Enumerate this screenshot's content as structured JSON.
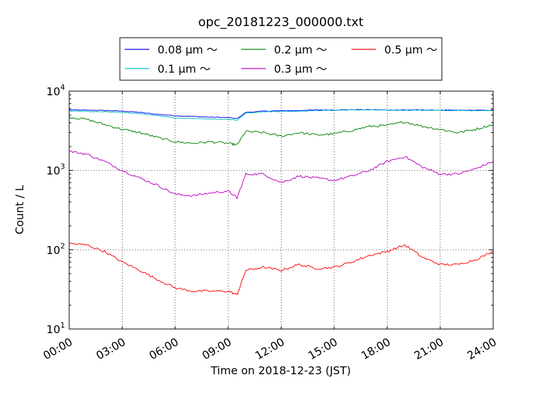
{
  "chart_data": {
    "type": "line",
    "title": "opc_20181223_000000.txt",
    "xlabel": "Time on 2018-12-23 (JST)",
    "ylabel": "Count / L",
    "x_unit": "hours",
    "xlim": [
      0,
      24
    ],
    "ylim": [
      10,
      10000
    ],
    "yscale": "log",
    "grid": true,
    "legend_position": "top-outside",
    "x_ticks": [
      {
        "value": 0,
        "label": "00:00"
      },
      {
        "value": 3,
        "label": "03:00"
      },
      {
        "value": 6,
        "label": "06:00"
      },
      {
        "value": 9,
        "label": "09:00"
      },
      {
        "value": 12,
        "label": "12:00"
      },
      {
        "value": 15,
        "label": "15:00"
      },
      {
        "value": 18,
        "label": "18:00"
      },
      {
        "value": 21,
        "label": "21:00"
      },
      {
        "value": 24,
        "label": "24:00"
      }
    ],
    "y_ticks": [
      {
        "value": 10,
        "mantissa": "10",
        "exponent": "1"
      },
      {
        "value": 100,
        "mantissa": "10",
        "exponent": "2"
      },
      {
        "value": 1000,
        "mantissa": "10",
        "exponent": "3"
      },
      {
        "value": 10000,
        "mantissa": "10",
        "exponent": "4"
      }
    ],
    "x": [
      0,
      1,
      2,
      3,
      4,
      5,
      6,
      7,
      8,
      9,
      9.5,
      10,
      11,
      12,
      13,
      14,
      15,
      16,
      17,
      18,
      19,
      20,
      21,
      22,
      23,
      24
    ],
    "series": [
      {
        "name": "0.08 μm ～",
        "color": "#0000ff",
        "values": [
          5800,
          5750,
          5700,
          5600,
          5400,
          5100,
          4900,
          4800,
          4700,
          4650,
          4500,
          5400,
          5600,
          5650,
          5700,
          5800,
          5800,
          5850,
          5850,
          5800,
          5800,
          5800,
          5750,
          5750,
          5750,
          5750
        ]
      },
      {
        "name": "0.1 μm ～",
        "color": "#00bfbf",
        "values": [
          5600,
          5550,
          5500,
          5400,
          5200,
          4900,
          4600,
          4500,
          4450,
          4400,
          4300,
          5300,
          5500,
          5550,
          5600,
          5700,
          5750,
          5800,
          5800,
          5750,
          5750,
          5750,
          5700,
          5700,
          5700,
          5700
        ]
      },
      {
        "name": "0.2 μm ～",
        "color": "#008000",
        "values": [
          4700,
          4400,
          3800,
          3300,
          3000,
          2600,
          2300,
          2200,
          2300,
          2200,
          2100,
          3100,
          3000,
          2700,
          3000,
          2800,
          2900,
          3200,
          3600,
          3700,
          4100,
          3600,
          3300,
          3000,
          3300,
          3800
        ]
      },
      {
        "name": "0.3 μm ～",
        "color": "#bf00bf",
        "values": [
          1750,
          1600,
          1300,
          1000,
          800,
          650,
          500,
          480,
          520,
          550,
          450,
          900,
          900,
          700,
          850,
          800,
          750,
          850,
          1000,
          1300,
          1500,
          1100,
          900,
          900,
          1050,
          1300
        ]
      },
      {
        "name": "0.5 μm ～",
        "color": "#ff0000",
        "values": [
          120,
          115,
          95,
          70,
          55,
          42,
          33,
          30,
          30,
          30,
          27,
          55,
          60,
          55,
          65,
          58,
          60,
          70,
          85,
          95,
          115,
          80,
          65,
          65,
          75,
          95
        ]
      }
    ]
  }
}
